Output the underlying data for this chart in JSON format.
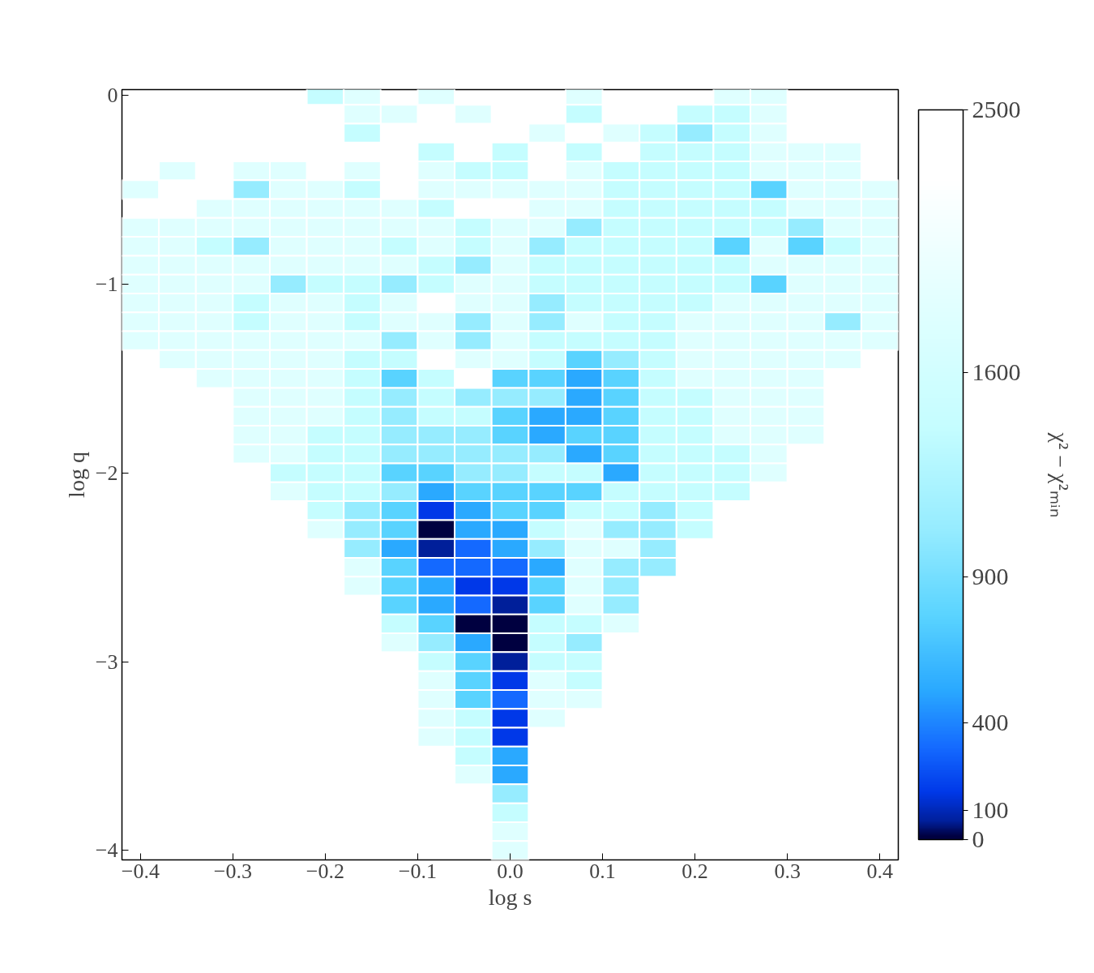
{
  "chart_data": {
    "type": "heatmap",
    "x": [
      -0.4,
      -0.36,
      -0.32,
      -0.28,
      -0.24,
      -0.2,
      -0.16,
      -0.12,
      -0.08,
      -0.04,
      0.0,
      0.04,
      0.08,
      0.12,
      0.16,
      0.2,
      0.24,
      0.28,
      0.32,
      0.36,
      0.4
    ],
    "y": [
      0,
      -0.1,
      -0.2,
      -0.3,
      -0.4,
      -0.5,
      -0.6,
      -0.7,
      -0.8,
      -0.9,
      -1.0,
      -1.1,
      -1.2,
      -1.3,
      -1.4,
      -1.5,
      -1.6,
      -1.7,
      -1.8,
      -1.9,
      -2.0,
      -2.1,
      -2.2,
      -2.3,
      -2.4,
      -2.5,
      -2.6,
      -2.7,
      -2.8,
      -2.9,
      -3.0,
      -3.1,
      -3.2,
      -3.3,
      -3.4,
      -3.5,
      -3.6,
      -3.7,
      -3.8,
      -3.9,
      -4.0
    ],
    "cells": [
      [
        null,
        null,
        null,
        null,
        null,
        1410,
        1800,
        null,
        1800,
        null,
        null,
        null,
        1800,
        null,
        null,
        null,
        1800,
        1800,
        null,
        null,
        null
      ],
      [
        null,
        null,
        null,
        null,
        null,
        null,
        1800,
        1800,
        null,
        1800,
        null,
        null,
        1410,
        null,
        null,
        1410,
        1410,
        1800,
        null,
        null,
        null
      ],
      [
        null,
        null,
        null,
        null,
        null,
        null,
        1410,
        null,
        null,
        null,
        null,
        1800,
        null,
        1800,
        1410,
        1060,
        1410,
        1800,
        null,
        null,
        null
      ],
      [
        null,
        null,
        null,
        null,
        null,
        null,
        null,
        null,
        1410,
        null,
        1410,
        null,
        1410,
        null,
        1410,
        1410,
        1410,
        1800,
        1800,
        1800,
        null
      ],
      [
        null,
        1800,
        null,
        1800,
        1800,
        null,
        1800,
        null,
        1800,
        1410,
        1410,
        null,
        1800,
        1410,
        1410,
        1410,
        1410,
        1800,
        1800,
        1800,
        null
      ],
      [
        1800,
        null,
        null,
        1060,
        1800,
        1800,
        1410,
        null,
        1800,
        1800,
        1800,
        1800,
        1800,
        1410,
        1410,
        1410,
        1410,
        760,
        1800,
        1800,
        1800
      ],
      [
        null,
        null,
        1800,
        1800,
        1800,
        1800,
        1800,
        1800,
        1410,
        null,
        null,
        1800,
        1800,
        1410,
        1410,
        1410,
        1410,
        1410,
        1800,
        1800,
        1800
      ],
      [
        1800,
        1800,
        1800,
        1800,
        1800,
        1800,
        1800,
        1800,
        1800,
        1410,
        1800,
        1800,
        1060,
        1410,
        1410,
        1410,
        1410,
        1410,
        1060,
        1800,
        1800
      ],
      [
        1800,
        1800,
        1410,
        1060,
        1800,
        1800,
        1800,
        1410,
        1800,
        1410,
        1800,
        1060,
        1410,
        1410,
        1410,
        1410,
        760,
        1800,
        760,
        1410,
        1800
      ],
      [
        1800,
        1800,
        1800,
        1800,
        1800,
        1800,
        1800,
        1800,
        1410,
        1060,
        1800,
        1410,
        1410,
        1410,
        1410,
        1410,
        1410,
        1800,
        1800,
        1800,
        1800
      ],
      [
        1800,
        1800,
        1800,
        1800,
        1060,
        1410,
        1410,
        1060,
        1410,
        1800,
        1800,
        1410,
        1410,
        1410,
        1410,
        1410,
        1410,
        760,
        1800,
        1800,
        1800
      ],
      [
        1800,
        1800,
        1800,
        1410,
        1800,
        1800,
        1410,
        1800,
        null,
        1800,
        1800,
        1060,
        1410,
        1410,
        1410,
        1410,
        1800,
        1800,
        1800,
        1800,
        1800
      ],
      [
        1800,
        1800,
        1800,
        1410,
        1800,
        1800,
        1410,
        1800,
        1800,
        1060,
        1800,
        1060,
        1800,
        1410,
        1410,
        1800,
        1800,
        1800,
        1800,
        1060,
        1800
      ],
      [
        1800,
        1800,
        1800,
        1800,
        1800,
        1800,
        1800,
        1060,
        1800,
        1060,
        1800,
        1410,
        1410,
        1410,
        1410,
        1800,
        1800,
        1800,
        1800,
        1800,
        1800
      ],
      [
        null,
        1800,
        1800,
        1800,
        1800,
        1800,
        1410,
        1410,
        null,
        1800,
        1800,
        1410,
        760,
        1060,
        1410,
        1800,
        1800,
        1800,
        1800,
        1800,
        null
      ],
      [
        null,
        null,
        1800,
        1800,
        1800,
        1800,
        1410,
        760,
        1410,
        null,
        760,
        760,
        510,
        760,
        1410,
        1800,
        1800,
        1800,
        1800,
        null,
        null
      ],
      [
        null,
        null,
        null,
        1800,
        1800,
        1800,
        1410,
        1060,
        1410,
        1060,
        1060,
        1060,
        510,
        760,
        1410,
        1410,
        1800,
        1800,
        1800,
        null,
        null
      ],
      [
        null,
        null,
        null,
        1800,
        1800,
        1800,
        1410,
        1060,
        1410,
        1410,
        760,
        510,
        510,
        760,
        1410,
        1410,
        1800,
        1800,
        1800,
        null,
        null
      ],
      [
        null,
        null,
        null,
        1800,
        1800,
        1410,
        1410,
        1060,
        1060,
        1060,
        760,
        510,
        760,
        760,
        1410,
        1410,
        1800,
        1800,
        1800,
        null,
        null
      ],
      [
        null,
        null,
        null,
        1800,
        1800,
        1410,
        1410,
        1060,
        1060,
        1060,
        1060,
        1060,
        510,
        760,
        1410,
        1410,
        1410,
        1800,
        null,
        null,
        null
      ],
      [
        null,
        null,
        null,
        null,
        1410,
        1410,
        1410,
        760,
        760,
        1060,
        1060,
        1410,
        1410,
        510,
        1410,
        1410,
        1410,
        1800,
        null,
        null,
        null
      ],
      [
        null,
        null,
        null,
        null,
        1800,
        1410,
        1410,
        1060,
        510,
        760,
        760,
        760,
        760,
        1410,
        1410,
        1410,
        1410,
        null,
        null,
        null,
        null
      ],
      [
        null,
        null,
        null,
        null,
        null,
        1410,
        1060,
        760,
        160,
        510,
        760,
        760,
        1410,
        1410,
        1060,
        1410,
        null,
        null,
        null,
        null,
        null
      ],
      [
        null,
        null,
        null,
        null,
        null,
        1800,
        1060,
        760,
        12,
        510,
        510,
        1410,
        1800,
        1060,
        1060,
        1410,
        null,
        null,
        null,
        null,
        null
      ],
      [
        null,
        null,
        null,
        null,
        null,
        null,
        1060,
        510,
        60,
        310,
        510,
        1060,
        1800,
        1800,
        1060,
        null,
        null,
        null,
        null,
        null,
        null
      ],
      [
        null,
        null,
        null,
        null,
        null,
        null,
        1800,
        760,
        310,
        310,
        310,
        510,
        1800,
        1060,
        1060,
        null,
        null,
        null,
        null,
        null,
        null
      ],
      [
        null,
        null,
        null,
        null,
        null,
        null,
        1800,
        760,
        510,
        160,
        160,
        760,
        1800,
        1060,
        null,
        null,
        null,
        null,
        null,
        null,
        null
      ],
      [
        null,
        null,
        null,
        null,
        null,
        null,
        null,
        760,
        510,
        310,
        60,
        760,
        1800,
        1060,
        null,
        null,
        null,
        null,
        null,
        null,
        null
      ],
      [
        null,
        null,
        null,
        null,
        null,
        null,
        null,
        1410,
        760,
        12,
        12,
        1410,
        1410,
        1800,
        null,
        null,
        null,
        null,
        null,
        null,
        null
      ],
      [
        null,
        null,
        null,
        null,
        null,
        null,
        null,
        1800,
        1060,
        510,
        12,
        1410,
        1060,
        null,
        null,
        null,
        null,
        null,
        null,
        null,
        null
      ],
      [
        null,
        null,
        null,
        null,
        null,
        null,
        null,
        null,
        1410,
        760,
        60,
        1410,
        1410,
        null,
        null,
        null,
        null,
        null,
        null,
        null,
        null
      ],
      [
        null,
        null,
        null,
        null,
        null,
        null,
        null,
        null,
        1800,
        760,
        160,
        1800,
        1410,
        null,
        null,
        null,
        null,
        null,
        null,
        null,
        null
      ],
      [
        null,
        null,
        null,
        null,
        null,
        null,
        null,
        null,
        1800,
        760,
        310,
        1800,
        1800,
        null,
        null,
        null,
        null,
        null,
        null,
        null,
        null
      ],
      [
        null,
        null,
        null,
        null,
        null,
        null,
        null,
        null,
        1800,
        1410,
        160,
        1800,
        null,
        null,
        null,
        null,
        null,
        null,
        null,
        null,
        null
      ],
      [
        null,
        null,
        null,
        null,
        null,
        null,
        null,
        null,
        1800,
        1410,
        160,
        null,
        null,
        null,
        null,
        null,
        null,
        null,
        null,
        null,
        null
      ],
      [
        null,
        null,
        null,
        null,
        null,
        null,
        null,
        null,
        null,
        1410,
        510,
        null,
        null,
        null,
        null,
        null,
        null,
        null,
        null,
        null,
        null
      ],
      [
        null,
        null,
        null,
        null,
        null,
        null,
        null,
        null,
        null,
        1800,
        510,
        null,
        null,
        null,
        null,
        null,
        null,
        null,
        null,
        null,
        null
      ],
      [
        null,
        null,
        null,
        null,
        null,
        null,
        null,
        null,
        null,
        null,
        1060,
        null,
        null,
        null,
        null,
        null,
        null,
        null,
        null,
        null,
        null
      ],
      [
        null,
        null,
        null,
        null,
        null,
        null,
        null,
        null,
        null,
        null,
        1410,
        null,
        null,
        null,
        null,
        null,
        null,
        null,
        null,
        null,
        null
      ],
      [
        null,
        null,
        null,
        null,
        null,
        null,
        null,
        null,
        null,
        null,
        1800,
        null,
        null,
        null,
        null,
        null,
        null,
        null,
        null,
        null,
        null
      ],
      [
        null,
        null,
        null,
        null,
        null,
        null,
        null,
        null,
        null,
        null,
        1800,
        null,
        null,
        null,
        null,
        null,
        null,
        null,
        null,
        null,
        null
      ]
    ],
    "xlim": [
      -0.42,
      0.42
    ],
    "ylim": [
      -4.05,
      0.03
    ],
    "xticks": [
      {
        "value": -0.4,
        "label": "−0.4"
      },
      {
        "value": -0.3,
        "label": "−0.3"
      },
      {
        "value": -0.2,
        "label": "−0.2"
      },
      {
        "value": -0.1,
        "label": "−0.1"
      },
      {
        "value": 0.0,
        "label": "0.0"
      },
      {
        "value": 0.1,
        "label": "0.1"
      },
      {
        "value": 0.2,
        "label": "0.2"
      },
      {
        "value": 0.3,
        "label": "0.3"
      },
      {
        "value": 0.4,
        "label": "0.4"
      }
    ],
    "yticks": [
      0,
      {
        "value": -1,
        "label": "−1"
      },
      {
        "value": -2,
        "label": "−2"
      },
      {
        "value": -3,
        "label": "−3"
      },
      {
        "value": -4,
        "label": "−4"
      }
    ],
    "xlabel": "log s",
    "ylabel": "log q",
    "clabel": "χ² − χ²ₘᵢₙ",
    "clim": [
      0,
      2500
    ],
    "cticks": [
      0,
      100,
      400,
      900,
      1600,
      2500
    ]
  }
}
